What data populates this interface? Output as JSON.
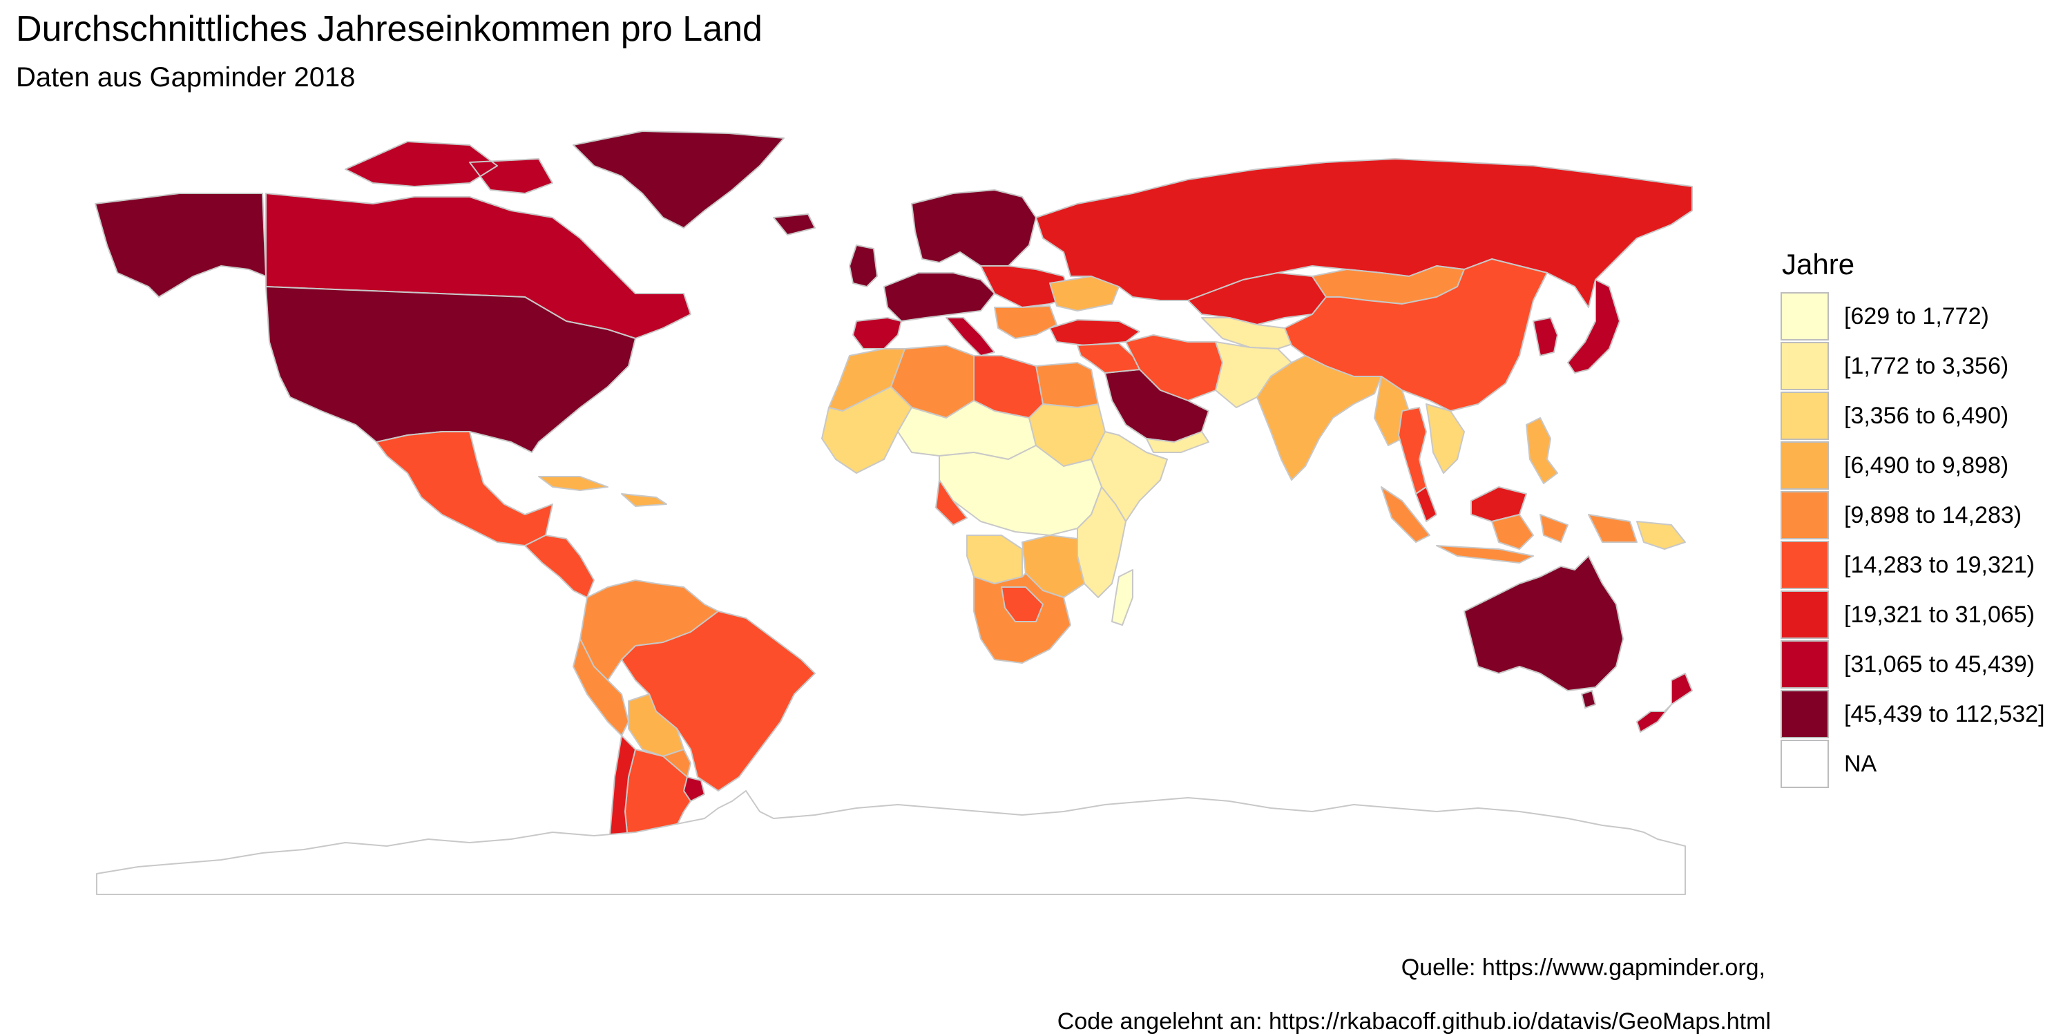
{
  "title": "Durchschnittliches Jahreseinkommen pro Land",
  "subtitle": "Daten aus Gapminder 2018",
  "legend": {
    "title": "Jahre",
    "items": [
      {
        "label": "[629 to 1,772)",
        "color": "#ffffcc"
      },
      {
        "label": "[1,772 to 3,356)",
        "color": "#ffeda0"
      },
      {
        "label": "[3,356 to 6,490)",
        "color": "#fed976"
      },
      {
        "label": "[6,490 to 9,898)",
        "color": "#feb24c"
      },
      {
        "label": "[9,898 to 14,283)",
        "color": "#fd8d3c"
      },
      {
        "label": "[14,283 to 19,321)",
        "color": "#fc4e2a"
      },
      {
        "label": "[19,321 to 31,065)",
        "color": "#e31a1c"
      },
      {
        "label": "[31,065 to 45,439)",
        "color": "#bd0026"
      },
      {
        "label": "[45,439 to 112,532]",
        "color": "#800026"
      },
      {
        "label": "NA",
        "color": "#ffffff"
      }
    ]
  },
  "caption": {
    "line1": "Quelle: https://www.gapminder.org,",
    "line2": "Code angelehnt an: https://rkabacoff.github.io/datavis/GeoMaps.html"
  },
  "map": {
    "border_color": "#c8c8c8",
    "regions": [
      {
        "name": "Alaska",
        "cls": 8
      },
      {
        "name": "Canada",
        "cls": 7
      },
      {
        "name": "Greenland",
        "cls": 8
      },
      {
        "name": "USA",
        "cls": 8
      },
      {
        "name": "Mexico",
        "cls": 5
      },
      {
        "name": "Central America",
        "cls": 5
      },
      {
        "name": "Caribbean",
        "cls": 3
      },
      {
        "name": "Colombia & Venezuela",
        "cls": 4
      },
      {
        "name": "Brazil",
        "cls": 5
      },
      {
        "name": "Peru & Ecuador",
        "cls": 4
      },
      {
        "name": "Bolivia",
        "cls": 3
      },
      {
        "name": "Paraguay",
        "cls": 4
      },
      {
        "name": "Argentina",
        "cls": 5
      },
      {
        "name": "Chile",
        "cls": 6
      },
      {
        "name": "Uruguay",
        "cls": 7
      },
      {
        "name": "Iceland",
        "cls": 8
      },
      {
        "name": "UK & Ireland",
        "cls": 8
      },
      {
        "name": "Scandinavia",
        "cls": 8
      },
      {
        "name": "Western Europe",
        "cls": 8
      },
      {
        "name": "Iberia & Italy",
        "cls": 7
      },
      {
        "name": "Eastern Europe",
        "cls": 6
      },
      {
        "name": "Ukraine",
        "cls": 3
      },
      {
        "name": "Balkans",
        "cls": 4
      },
      {
        "name": "Turkey",
        "cls": 6
      },
      {
        "name": "Russia",
        "cls": 6
      },
      {
        "name": "Kazakhstan",
        "cls": 6
      },
      {
        "name": "Central Asia",
        "cls": 1
      },
      {
        "name": "Mongolia",
        "cls": 4
      },
      {
        "name": "China",
        "cls": 5
      },
      {
        "name": "Iran",
        "cls": 5
      },
      {
        "name": "Afghanistan & Pakistan",
        "cls": 1
      },
      {
        "name": "India",
        "cls": 3
      },
      {
        "name": "Myanmar",
        "cls": 3
      },
      {
        "name": "Thailand",
        "cls": 5
      },
      {
        "name": "Southeast Asia",
        "cls": 2
      },
      {
        "name": "Malaysia",
        "cls": 6
      },
      {
        "name": "Indonesia",
        "cls": 4
      },
      {
        "name": "Philippines",
        "cls": 3
      },
      {
        "name": "Papua New Guinea",
        "cls": 2
      },
      {
        "name": "Japan",
        "cls": 7
      },
      {
        "name": "Korea",
        "cls": 7
      },
      {
        "name": "Saudi Arabia & Gulf",
        "cls": 8
      },
      {
        "name": "Middle East",
        "cls": 5
      },
      {
        "name": "Yemen",
        "cls": 1
      },
      {
        "name": "Egypt",
        "cls": 4
      },
      {
        "name": "Libya",
        "cls": 5
      },
      {
        "name": "Algeria",
        "cls": 4
      },
      {
        "name": "Morocco",
        "cls": 3
      },
      {
        "name": "West Africa",
        "cls": 2
      },
      {
        "name": "Sahel",
        "cls": 0
      },
      {
        "name": "Sudan",
        "cls": 2
      },
      {
        "name": "Horn of Africa",
        "cls": 1
      },
      {
        "name": "Central Africa",
        "cls": 0
      },
      {
        "name": "Gabon",
        "cls": 5
      },
      {
        "name": "East Africa",
        "cls": 1
      },
      {
        "name": "Angola",
        "cls": 2
      },
      {
        "name": "Southern Africa",
        "cls": 3
      },
      {
        "name": "Namibia & South Africa",
        "cls": 4
      },
      {
        "name": "Botswana",
        "cls": 5
      },
      {
        "name": "Madagascar",
        "cls": 0
      },
      {
        "name": "Australia",
        "cls": 8
      },
      {
        "name": "New Zealand",
        "cls": 7
      },
      {
        "name": "Antarctica",
        "cls": 9
      }
    ]
  }
}
